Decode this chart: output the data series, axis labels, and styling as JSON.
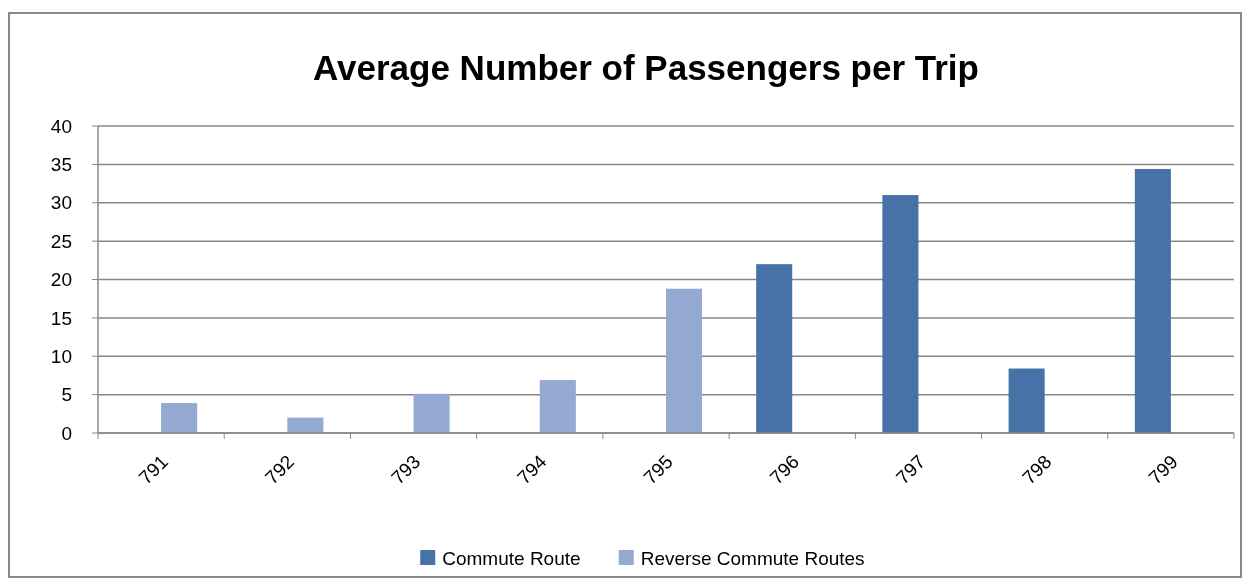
{
  "chart_data": {
    "type": "bar",
    "title": "Average Number of Passengers per Trip",
    "categories": [
      "791",
      "792",
      "793",
      "794",
      "795",
      "796",
      "797",
      "798",
      "799"
    ],
    "series": [
      {
        "name": "Commute Route",
        "color": "#4672a7",
        "values": [
          null,
          null,
          null,
          null,
          null,
          22.0,
          31.0,
          8.4,
          34.4
        ]
      },
      {
        "name": "Reverse Commute Routes",
        "color": "#94aad2",
        "values": [
          3.9,
          2.0,
          5.1,
          6.9,
          18.8,
          null,
          null,
          null,
          null
        ]
      }
    ],
    "ylim": [
      0,
      40
    ],
    "yticks": [
      0,
      5,
      10,
      15,
      20,
      25,
      30,
      35,
      40
    ],
    "grid": "y",
    "legend": "bottom"
  }
}
